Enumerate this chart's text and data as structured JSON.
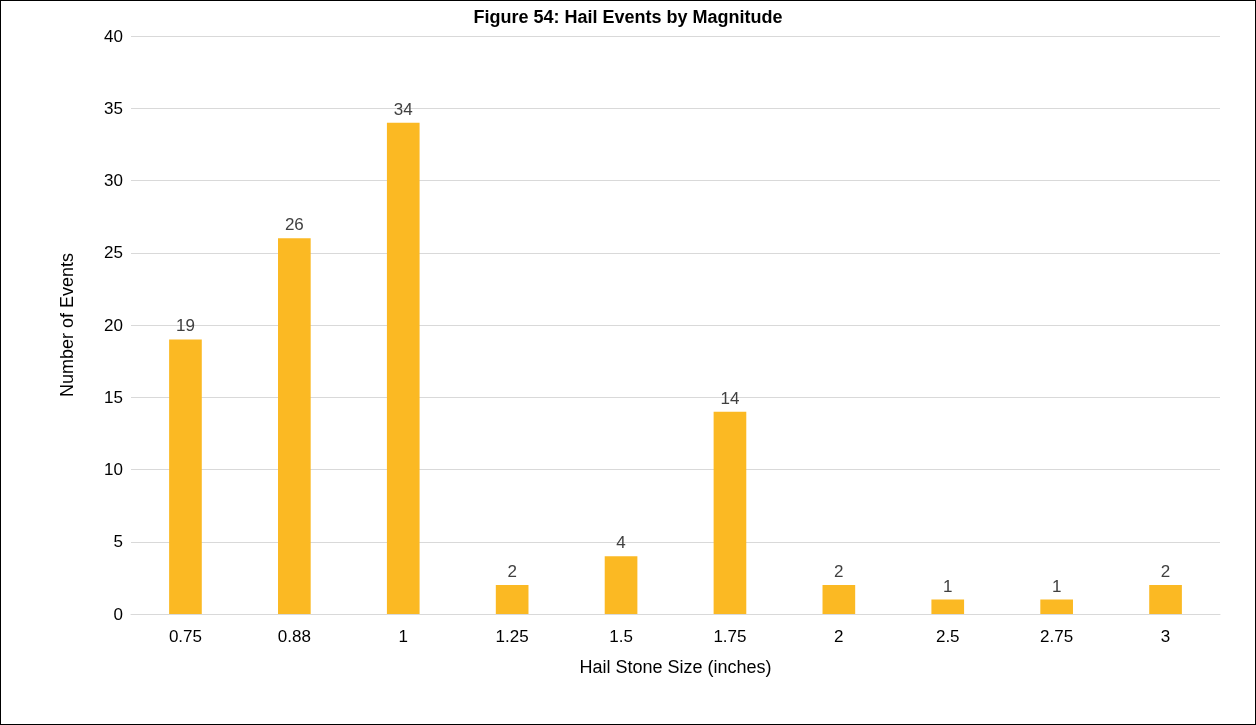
{
  "chart_data": {
    "type": "bar",
    "title": "Figure 54: Hail Events by Magnitude",
    "xlabel": "Hail Stone Size (inches)",
    "ylabel": "Number of Events",
    "categories": [
      "0.75",
      "0.88",
      "1",
      "1.25",
      "1.5",
      "1.75",
      "2",
      "2.5",
      "2.75",
      "3"
    ],
    "values": [
      19,
      26,
      34,
      2,
      4,
      14,
      2,
      1,
      1,
      2
    ],
    "color": "#fbb923",
    "ylim": [
      0,
      40
    ],
    "yticks": [
      0,
      5,
      10,
      15,
      20,
      25,
      30,
      35,
      40
    ],
    "grid": "y",
    "data_labels": true
  }
}
